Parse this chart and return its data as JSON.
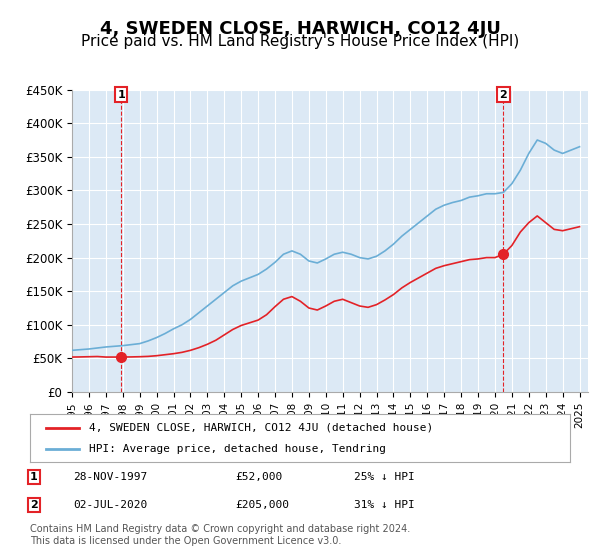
{
  "title": "4, SWEDEN CLOSE, HARWICH, CO12 4JU",
  "subtitle": "Price paid vs. HM Land Registry's House Price Index (HPI)",
  "title_fontsize": 13,
  "subtitle_fontsize": 11,
  "background_color": "#ffffff",
  "plot_bg_color": "#dce9f5",
  "grid_color": "#ffffff",
  "ylim": [
    0,
    450000
  ],
  "yticks": [
    0,
    50000,
    100000,
    150000,
    200000,
    250000,
    300000,
    350000,
    400000,
    450000
  ],
  "ytick_labels": [
    "£0",
    "£50K",
    "£100K",
    "£150K",
    "£200K",
    "£250K",
    "£300K",
    "£350K",
    "£400K",
    "£450K"
  ],
  "xlim_start": 1995.0,
  "xlim_end": 2025.5,
  "hpi_color": "#6baed6",
  "property_color": "#e32227",
  "marker_color": "#e32227",
  "vline_color": "#e32227",
  "legend_label_property": "4, SWEDEN CLOSE, HARWICH, CO12 4JU (detached house)",
  "legend_label_hpi": "HPI: Average price, detached house, Tendring",
  "annotation1_num": "1",
  "annotation1_date": "28-NOV-1997",
  "annotation1_price": "£52,000",
  "annotation1_hpi": "25% ↓ HPI",
  "annotation2_num": "2",
  "annotation2_date": "02-JUL-2020",
  "annotation2_price": "£205,000",
  "annotation2_hpi": "31% ↓ HPI",
  "footer": "Contains HM Land Registry data © Crown copyright and database right 2024.\nThis data is licensed under the Open Government Licence v3.0.",
  "sale1_year": 1997.91,
  "sale1_price": 52000,
  "sale2_year": 2020.5,
  "sale2_price": 205000,
  "hpi_years": [
    1995,
    1995.5,
    1996,
    1996.5,
    1997,
    1997.5,
    1998,
    1998.5,
    1999,
    1999.5,
    2000,
    2000.5,
    2001,
    2001.5,
    2002,
    2002.5,
    2003,
    2003.5,
    2004,
    2004.5,
    2005,
    2005.5,
    2006,
    2006.5,
    2007,
    2007.5,
    2008,
    2008.5,
    2009,
    2009.5,
    2010,
    2010.5,
    2011,
    2011.5,
    2012,
    2012.5,
    2013,
    2013.5,
    2014,
    2014.5,
    2015,
    2015.5,
    2016,
    2016.5,
    2017,
    2017.5,
    2018,
    2018.5,
    2019,
    2019.5,
    2020,
    2020.5,
    2021,
    2021.5,
    2022,
    2022.5,
    2023,
    2023.5,
    2024,
    2024.5,
    2025
  ],
  "hpi_values": [
    62000,
    63000,
    64000,
    65500,
    67000,
    68000,
    69000,
    70500,
    72000,
    76000,
    81000,
    87000,
    94000,
    100000,
    108000,
    118000,
    128000,
    138000,
    148000,
    158000,
    165000,
    170000,
    175000,
    183000,
    193000,
    205000,
    210000,
    205000,
    195000,
    192000,
    198000,
    205000,
    208000,
    205000,
    200000,
    198000,
    202000,
    210000,
    220000,
    232000,
    242000,
    252000,
    262000,
    272000,
    278000,
    282000,
    285000,
    290000,
    292000,
    295000,
    295000,
    297000,
    310000,
    330000,
    355000,
    375000,
    370000,
    360000,
    355000,
    360000,
    365000
  ],
  "prop_years": [
    1995,
    1995.5,
    1996,
    1996.5,
    1997,
    1997.5,
    1997.91,
    1998.5,
    1999,
    1999.5,
    2000,
    2000.5,
    2001,
    2001.5,
    2002,
    2002.5,
    2003,
    2003.5,
    2004,
    2004.5,
    2005,
    2005.5,
    2006,
    2006.5,
    2007,
    2007.5,
    2008,
    2008.5,
    2009,
    2009.5,
    2010,
    2010.5,
    2011,
    2011.5,
    2012,
    2012.5,
    2013,
    2013.5,
    2014,
    2014.5,
    2015,
    2015.5,
    2016,
    2016.5,
    2017,
    2017.5,
    2018,
    2018.5,
    2019,
    2019.5,
    2020,
    2020.5,
    2021,
    2021.5,
    2022,
    2022.5,
    2023,
    2023.5,
    2024,
    2024.5,
    2025
  ],
  "prop_values": [
    52000,
    52200,
    52500,
    52800,
    52000,
    52000,
    52000,
    52200,
    52500,
    53000,
    54000,
    55500,
    57000,
    59000,
    62000,
    66000,
    71000,
    77000,
    85000,
    93000,
    99000,
    103000,
    107000,
    115000,
    127000,
    138000,
    142000,
    135000,
    125000,
    122000,
    128000,
    135000,
    138000,
    133000,
    128000,
    126000,
    130000,
    137000,
    145000,
    155000,
    163000,
    170000,
    177000,
    184000,
    188000,
    191000,
    194000,
    197000,
    198000,
    200000,
    200000,
    205000,
    218000,
    238000,
    252000,
    262000,
    252000,
    242000,
    240000,
    243000,
    246000
  ]
}
